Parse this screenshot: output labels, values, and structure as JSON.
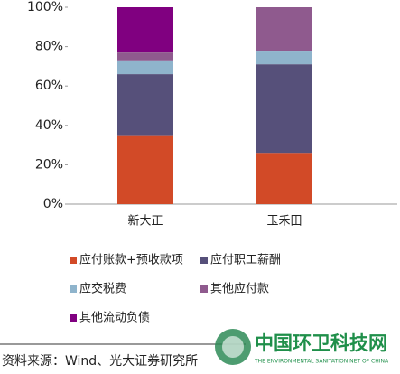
{
  "chart_data": {
    "type": "stacked_bar",
    "categories": [
      "新大正",
      "玉禾田"
    ],
    "series": [
      {
        "name": "应付账款+预收款项",
        "color": "#d24a27",
        "values": [
          35,
          26
        ]
      },
      {
        "name": "应付职工薪酬",
        "color": "#56507a",
        "values": [
          31,
          45
        ]
      },
      {
        "name": "应交税费",
        "color": "#8fb4cc",
        "values": [
          7,
          6.5
        ]
      },
      {
        "name": "其他应付款",
        "color": "#8f5a8e",
        "values": [
          4,
          22.5
        ]
      },
      {
        "name": "其他流动负债",
        "color": "#800080",
        "values": [
          23,
          0
        ]
      }
    ],
    "ylim": [
      0,
      100
    ],
    "yticks": [
      {
        "value": 0,
        "label": "0%"
      },
      {
        "value": 20,
        "label": "20%"
      },
      {
        "value": 40,
        "label": "40%"
      },
      {
        "value": 60,
        "label": "60%"
      },
      {
        "value": 80,
        "label": "80%"
      },
      {
        "value": 100,
        "label": "100%"
      }
    ]
  },
  "source": "资料来源：Wind、光大证券研究所",
  "watermark": {
    "title": "中国环卫科技网",
    "subtitle": "THE ENVIRONMENTAL SANITATION NET OF CHINA"
  }
}
